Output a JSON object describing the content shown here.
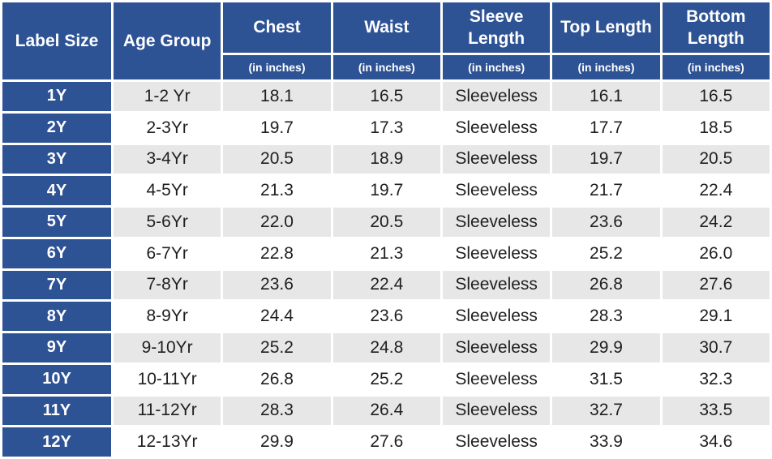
{
  "chart_data": {
    "type": "table",
    "columns": [
      {
        "label": "Label Size",
        "sub": ""
      },
      {
        "label": "Age Group",
        "sub": ""
      },
      {
        "label": "Chest",
        "sub": "(in inches)"
      },
      {
        "label": "Waist",
        "sub": "(in inches)"
      },
      {
        "label": "Sleeve Length",
        "sub": "(in inches)"
      },
      {
        "label": "Top Length",
        "sub": "(in inches)"
      },
      {
        "label": "Bottom Length",
        "sub": "(in inches)"
      }
    ],
    "rows": [
      [
        "1Y",
        "1-2 Yr",
        "18.1",
        "16.5",
        "Sleeveless",
        "16.1",
        "16.5"
      ],
      [
        "2Y",
        "2-3Yr",
        "19.7",
        "17.3",
        "Sleeveless",
        "17.7",
        "18.5"
      ],
      [
        "3Y",
        "3-4Yr",
        "20.5",
        "18.9",
        "Sleeveless",
        "19.7",
        "20.5"
      ],
      [
        "4Y",
        "4-5Yr",
        "21.3",
        "19.7",
        "Sleeveless",
        "21.7",
        "22.4"
      ],
      [
        "5Y",
        "5-6Yr",
        "22.0",
        "20.5",
        "Sleeveless",
        "23.6",
        "24.2"
      ],
      [
        "6Y",
        "6-7Yr",
        "22.8",
        "21.3",
        "Sleeveless",
        "25.2",
        "26.0"
      ],
      [
        "7Y",
        "7-8Yr",
        "23.6",
        "22.4",
        "Sleeveless",
        "26.8",
        "27.6"
      ],
      [
        "8Y",
        "8-9Yr",
        "24.4",
        "23.6",
        "Sleeveless",
        "28.3",
        "29.1"
      ],
      [
        "9Y",
        "9-10Yr",
        "25.2",
        "24.8",
        "Sleeveless",
        "29.9",
        "30.7"
      ],
      [
        "10Y",
        "10-11Yr",
        "26.8",
        "25.2",
        "Sleeveless",
        "31.5",
        "32.3"
      ],
      [
        "11Y",
        "11-12Yr",
        "28.3",
        "26.4",
        "Sleeveless",
        "32.7",
        "33.5"
      ],
      [
        "12Y",
        "12-13Yr",
        "29.9",
        "27.6",
        "Sleeveless",
        "33.9",
        "34.6"
      ]
    ],
    "layout": {
      "header_rows": 2,
      "striped": true,
      "first_column_style": "header-blue"
    }
  },
  "colors": {
    "header_bg": "#2E5395",
    "header_text": "#FFFFFF",
    "stripe_bg": "#E7E7E7",
    "row_bg": "#FFFFFF",
    "data_text": "#1F1F1F",
    "grid_gap": "#FFFFFF"
  }
}
